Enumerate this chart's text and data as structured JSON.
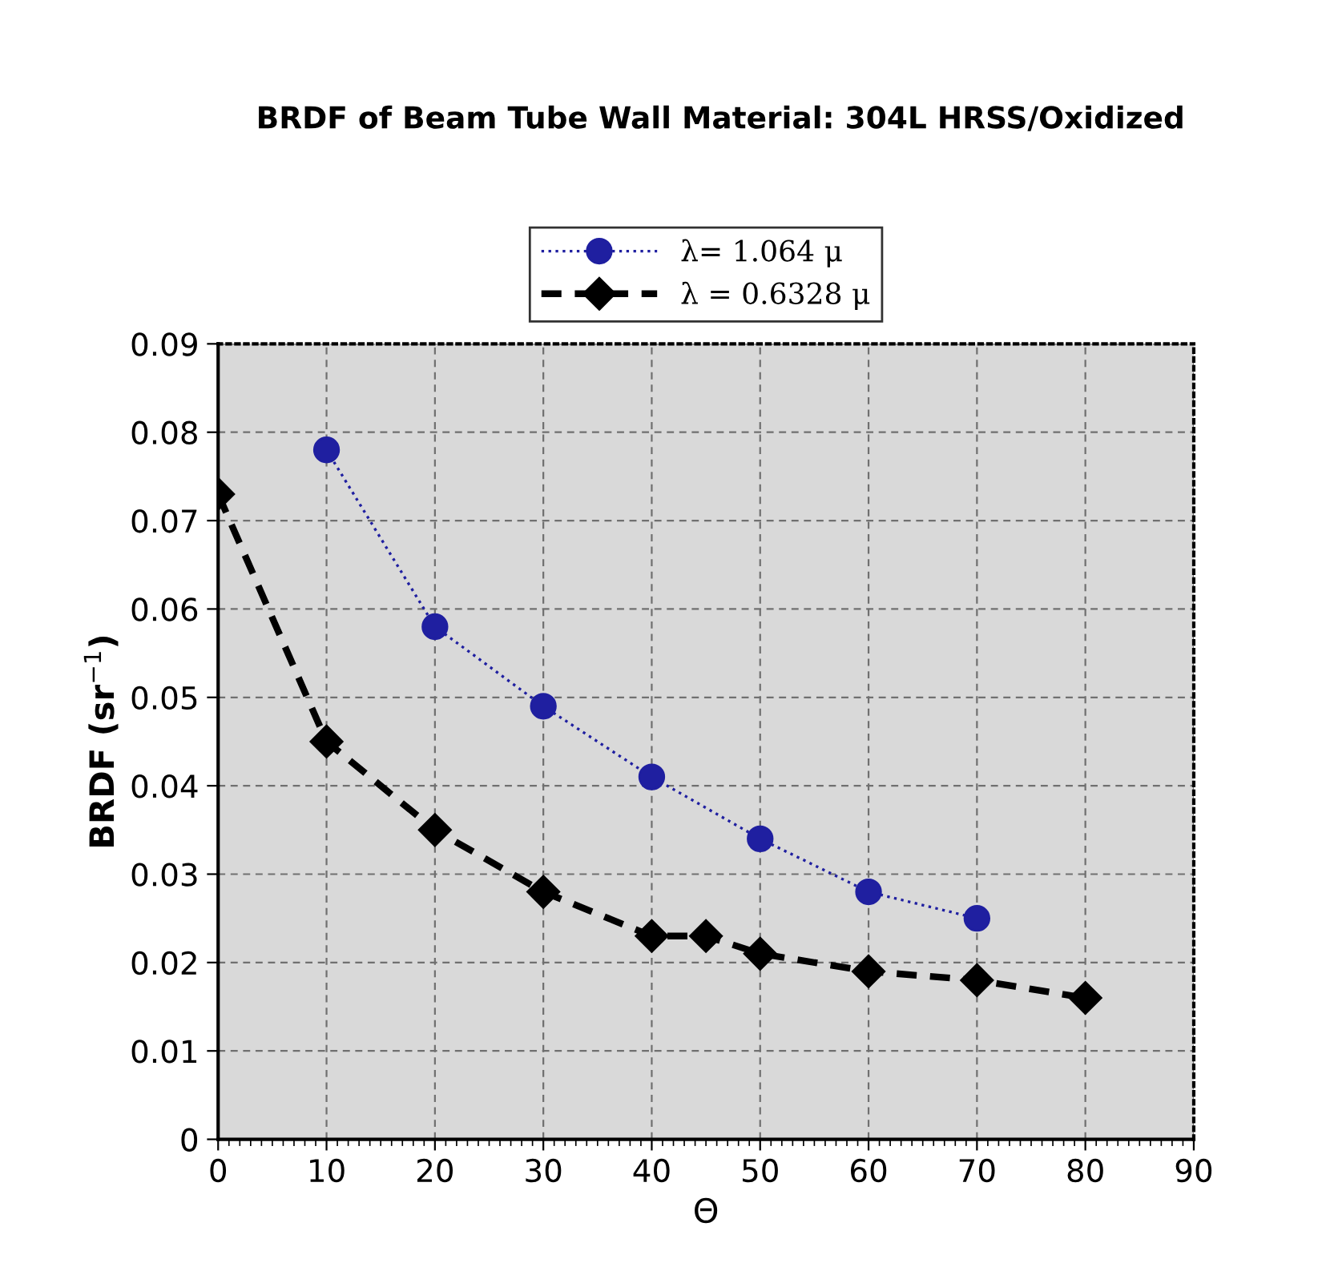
{
  "chart_data": {
    "type": "line",
    "title": "BRDF of Beam Tube Wall Material: 304L HRSS/Oxidized",
    "xlabel": "Θ",
    "ylabel": "BRDF (sr$^{−1}$)",
    "xlim": [
      0,
      90
    ],
    "xticks": [
      0,
      10,
      20,
      30,
      40,
      50,
      60,
      70,
      80,
      90
    ],
    "ylim": [
      0,
      0.09
    ],
    "yticks": [
      0,
      0.01,
      0.02,
      0.03,
      0.04,
      0.05,
      0.06,
      0.07,
      0.08,
      0.09
    ],
    "grid": true,
    "legend": "top",
    "series": [
      {
        "name": "λ= 1.064 μ",
        "color": "#1f1fa0",
        "marker": "circle",
        "line_style": "dotted",
        "x": [
          10,
          20,
          30,
          40,
          50,
          60,
          70
        ],
        "values": [
          0.078,
          0.058,
          0.049,
          0.041,
          0.034,
          0.028,
          0.025
        ]
      },
      {
        "name": "λ = 0.6328 μ",
        "color": "#000000",
        "marker": "diamond",
        "line_style": "dashed",
        "x": [
          0,
          10,
          20,
          30,
          40,
          45,
          50,
          60,
          70,
          80
        ],
        "values": [
          0.073,
          0.045,
          0.035,
          0.028,
          0.023,
          0.023,
          0.021,
          0.019,
          0.018,
          0.016
        ]
      }
    ]
  }
}
